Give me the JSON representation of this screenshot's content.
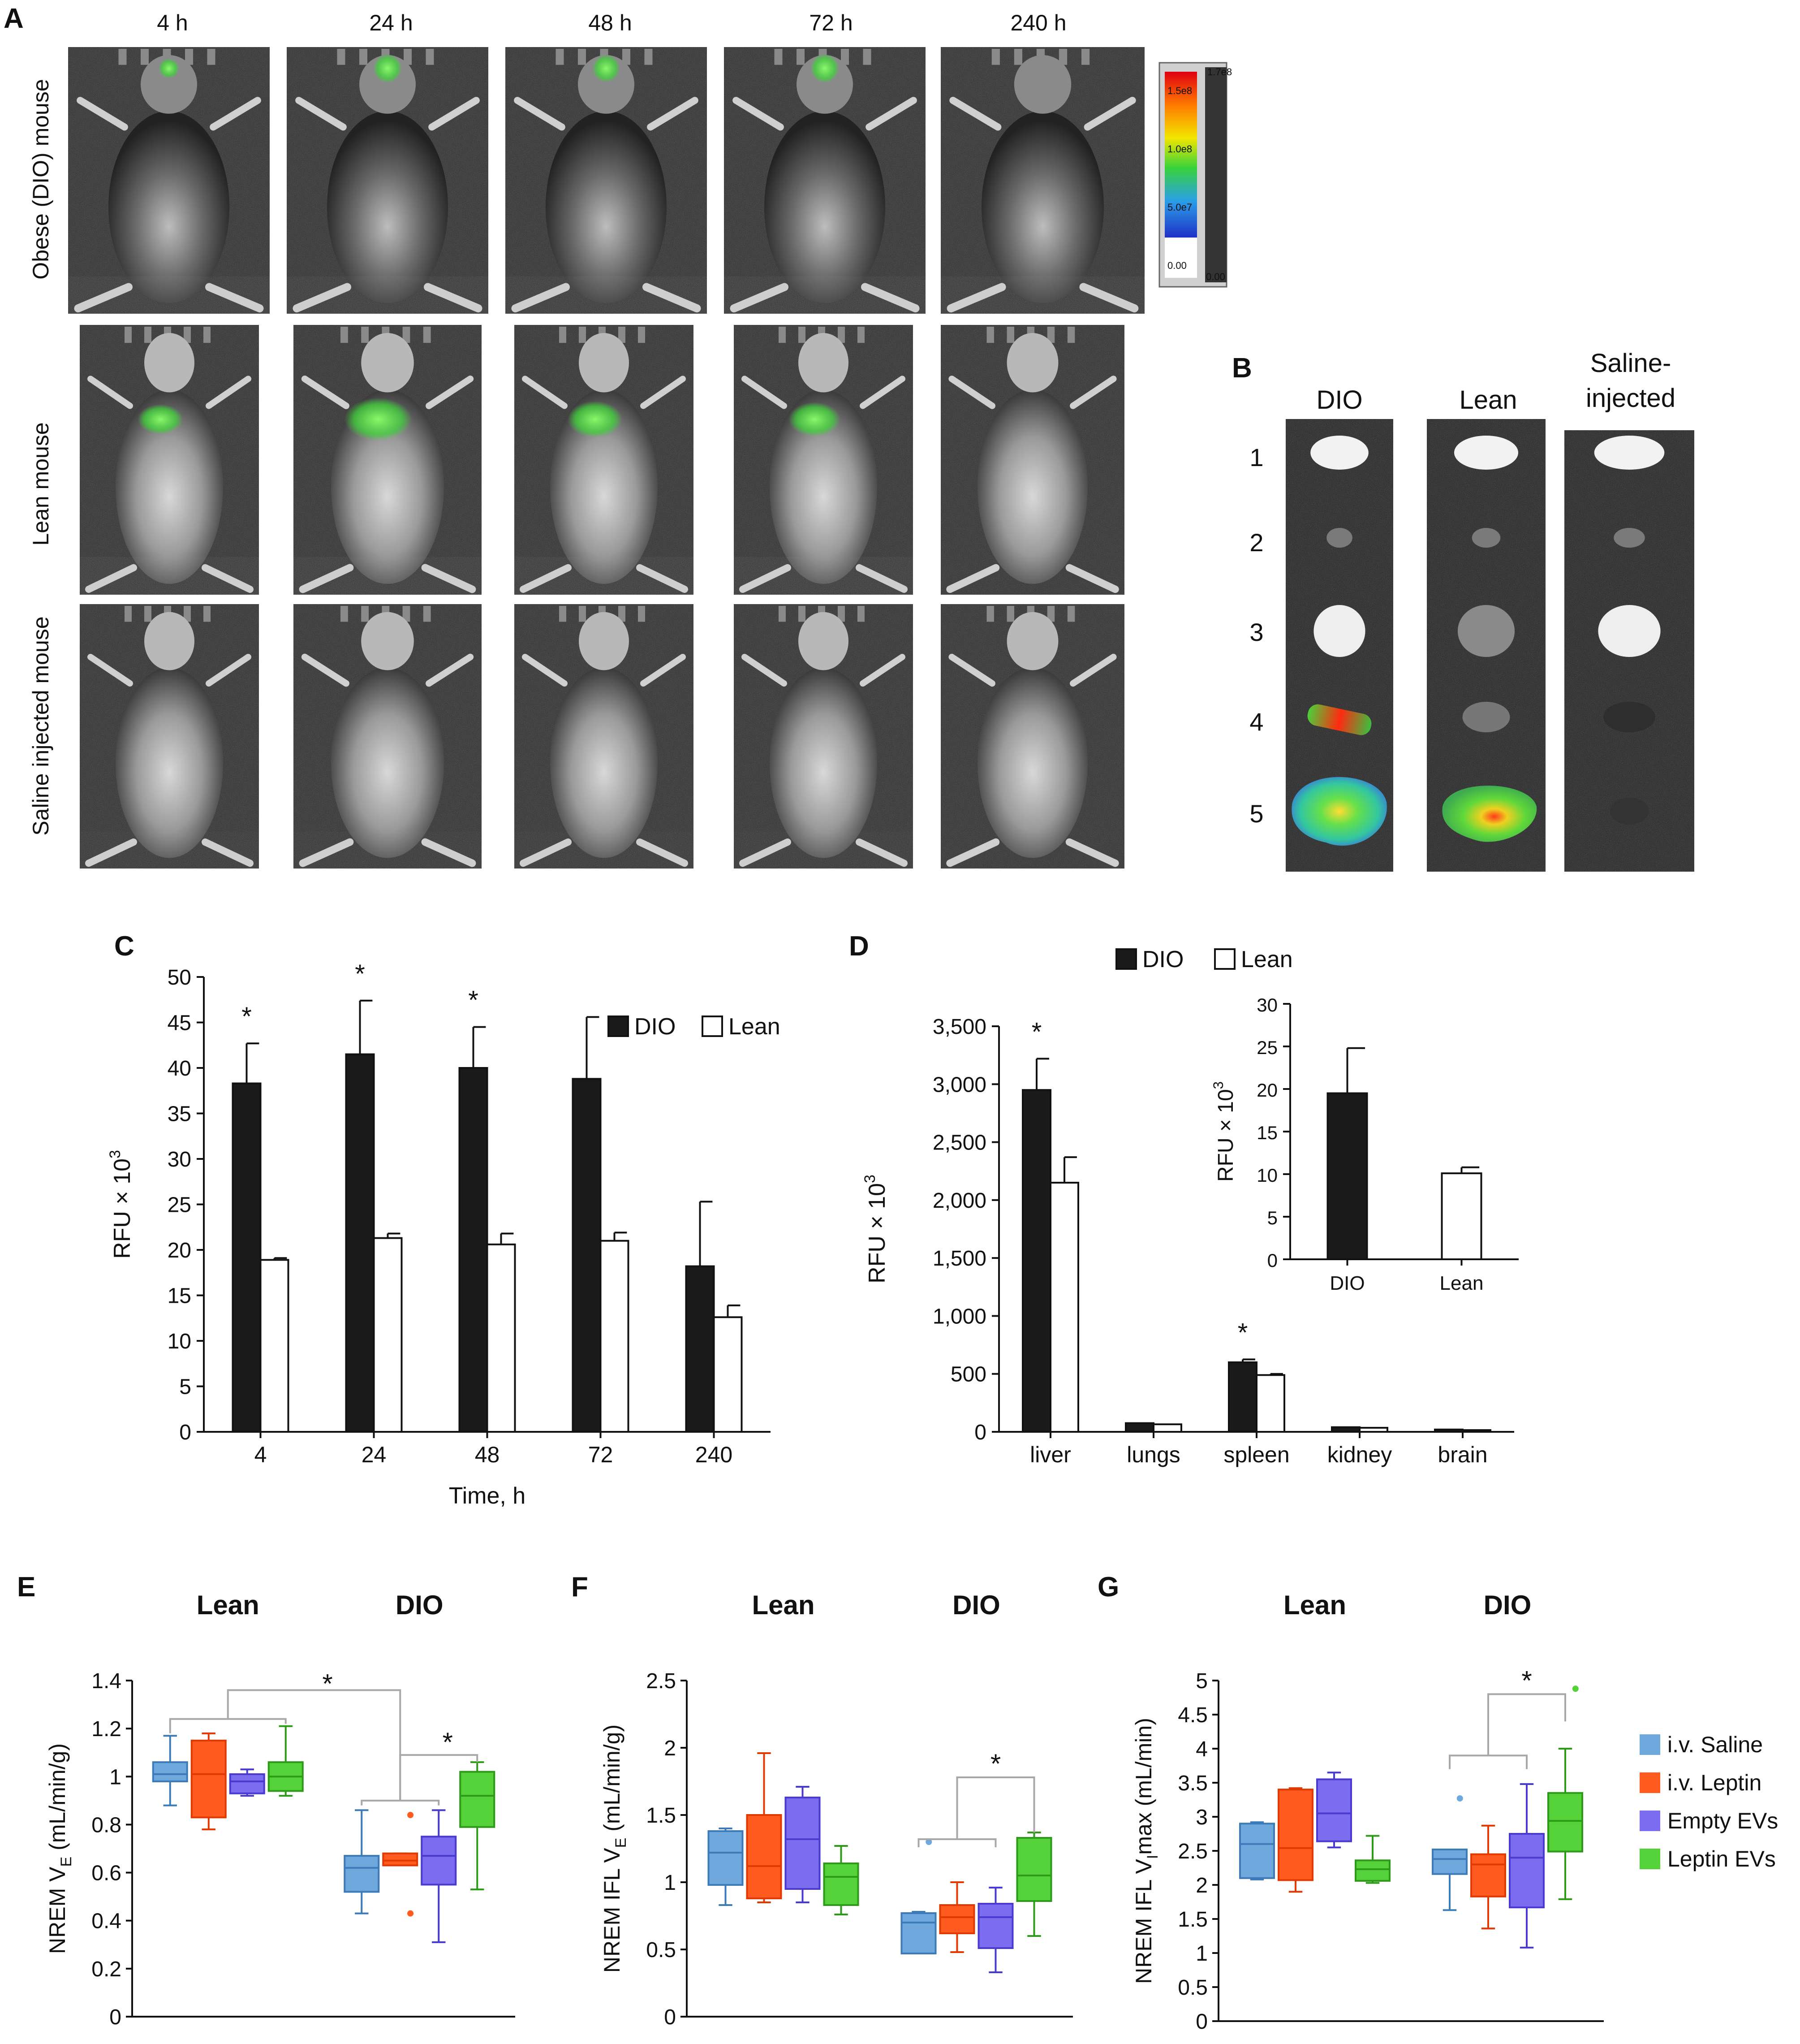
{
  "panel_letters": {
    "a": "A",
    "b": "B",
    "c": "C",
    "d": "D",
    "e": "E",
    "f": "F",
    "g": "G"
  },
  "panel_a": {
    "time_labels": [
      "4 h",
      "24 h",
      "48 h",
      "72 h",
      "240 h"
    ],
    "row_labels": [
      "Obese (DIO) mouse",
      "Lean  mouse",
      "Saline injected mouse"
    ],
    "colorbar_labels": [
      "1.7e8",
      "1.5e8",
      "1.0e8",
      "5.0e7",
      "0.00",
      "0.00"
    ],
    "colors": {
      "signal": "#3fd43a",
      "background": "#2a2a2a"
    }
  },
  "panel_b": {
    "columns": [
      "DIO",
      "Lean",
      "Saline-",
      "injected"
    ],
    "rows": [
      "1",
      "2",
      "3",
      "4",
      "5"
    ]
  },
  "chart_data": [
    {
      "id": "C",
      "type": "bar",
      "categories": [
        "4",
        "24",
        "48",
        "72",
        "240"
      ],
      "series": [
        {
          "name": "DIO",
          "color": "#1a1a1a",
          "values": [
            38.3,
            41.5,
            40.0,
            38.8,
            18.2
          ],
          "errors": [
            4.4,
            5.9,
            4.5,
            6.8,
            7.1
          ]
        },
        {
          "name": "Lean",
          "color": "#ffffff",
          "values": [
            18.9,
            21.3,
            20.6,
            21.0,
            12.6
          ],
          "errors": [
            0.2,
            0.5,
            1.2,
            0.9,
            1.3
          ]
        }
      ],
      "significance": [
        "*",
        "*",
        "*",
        "",
        ""
      ],
      "xlabel": "Time, h",
      "ylabel": "RFU × 10",
      "ylabel_sup": "3",
      "ylim": [
        0,
        50
      ],
      "yticks": [
        "0",
        "5",
        "10",
        "15",
        "20",
        "25",
        "30",
        "35",
        "40",
        "45",
        "50"
      ],
      "legend_position": "top-right"
    },
    {
      "id": "D",
      "type": "bar",
      "categories": [
        "liver",
        "lungs",
        "spleen",
        "kidney",
        "brain"
      ],
      "series": [
        {
          "name": "DIO",
          "color": "#1a1a1a",
          "values": [
            2950,
            75,
            600,
            40,
            20
          ],
          "errors": [
            270,
            0,
            25,
            0,
            0
          ]
        },
        {
          "name": "Lean",
          "color": "#ffffff",
          "values": [
            2150,
            65,
            490,
            35,
            15
          ],
          "errors": [
            220,
            0,
            10,
            0,
            0
          ]
        }
      ],
      "significance": [
        "*",
        "",
        "*",
        "",
        ""
      ],
      "ylabel": "RFU × 10",
      "ylabel_sup": "3",
      "ylim": [
        0,
        3500
      ],
      "yticks": [
        "0",
        "500",
        "1,000",
        "1,500",
        "2,000",
        "2,500",
        "3,000",
        "3,500"
      ],
      "legend_position": "top"
    },
    {
      "id": "D-inset",
      "type": "bar",
      "categories": [
        "DIO",
        "Lean"
      ],
      "values": [
        19.5,
        10.1
      ],
      "errors": [
        5.3,
        0.7
      ],
      "colors": [
        "#1a1a1a",
        "#ffffff"
      ],
      "ylabel": "RFU × 10",
      "ylabel_sup": "3",
      "ylim": [
        0,
        30
      ],
      "yticks": [
        "0",
        "5",
        "10",
        "15",
        "20",
        "25",
        "30"
      ]
    },
    {
      "id": "E",
      "type": "box",
      "groups": [
        "Lean",
        "DIO"
      ],
      "series_order": [
        "i.v. Saline",
        "i.v. Leptin",
        "Empty EVs",
        "Leptin EVs"
      ],
      "boxes": [
        [
          [
            0.88,
            0.98,
            1.01,
            1.06,
            1.17,
            []
          ],
          [
            0.78,
            0.83,
            1.01,
            1.15,
            1.18,
            []
          ],
          [
            0.92,
            0.93,
            0.98,
            1.01,
            1.03,
            []
          ],
          [
            0.92,
            0.94,
            1.0,
            1.06,
            1.21,
            []
          ]
        ],
        [
          [
            0.43,
            0.52,
            0.62,
            0.67,
            0.86,
            []
          ],
          [
            0.63,
            0.63,
            0.65,
            0.68,
            0.68,
            [
              0.84,
              0.43
            ]
          ],
          [
            0.31,
            0.55,
            0.67,
            0.75,
            0.86,
            []
          ],
          [
            0.53,
            0.79,
            0.92,
            1.02,
            1.06,
            []
          ]
        ]
      ],
      "significance": [
        "*",
        "*"
      ],
      "ylabel": "NREM V",
      "ylabel_sub": "E",
      "ylabel_unit": " (mL/min/g)",
      "ylim": [
        0,
        1.4
      ],
      "yticks": [
        "0",
        "0.2",
        "0.4",
        "0.6",
        "0.8",
        "1",
        "1.2",
        "1.4"
      ]
    },
    {
      "id": "F",
      "type": "box",
      "groups": [
        "Lean",
        "DIO"
      ],
      "series_order": [
        "i.v. Saline",
        "i.v. Leptin",
        "Empty EVs",
        "Leptin EVs"
      ],
      "boxes": [
        [
          [
            0.83,
            0.98,
            1.22,
            1.38,
            1.4,
            []
          ],
          [
            0.85,
            0.88,
            1.12,
            1.5,
            1.96,
            []
          ],
          [
            0.85,
            0.95,
            1.32,
            1.63,
            1.71,
            []
          ],
          [
            0.76,
            0.83,
            1.04,
            1.14,
            1.27,
            []
          ]
        ],
        [
          [
            0.48,
            0.47,
            0.7,
            0.77,
            0.78,
            [
              1.3
            ]
          ],
          [
            0.48,
            0.62,
            0.74,
            0.83,
            1.0,
            []
          ],
          [
            0.33,
            0.51,
            0.74,
            0.84,
            0.96,
            []
          ],
          [
            0.6,
            0.86,
            1.05,
            1.33,
            1.37,
            []
          ]
        ]
      ],
      "significance": [
        "*"
      ],
      "ylabel": "NREM IFL V",
      "ylabel_sub": "E",
      "ylabel_unit": " (mL/min/g)",
      "ylim": [
        0,
        2.5
      ],
      "yticks": [
        "0",
        "0.5",
        "1",
        "1.5",
        "2",
        "2.5"
      ]
    },
    {
      "id": "G",
      "type": "box",
      "groups": [
        "Lean",
        "DIO"
      ],
      "series_order": [
        "i.v. Saline",
        "i.v. Leptin",
        "Empty EVs",
        "Leptin EVs"
      ],
      "boxes": [
        [
          [
            2.08,
            2.1,
            2.6,
            2.9,
            2.92,
            []
          ],
          [
            1.9,
            2.07,
            2.54,
            3.4,
            3.42,
            []
          ],
          [
            2.55,
            2.64,
            3.05,
            3.55,
            3.65,
            []
          ],
          [
            2.03,
            2.06,
            2.23,
            2.36,
            2.72,
            []
          ]
        ],
        [
          [
            1.63,
            2.16,
            2.38,
            2.52,
            2.5,
            [
              3.27
            ]
          ],
          [
            1.36,
            1.83,
            2.3,
            2.45,
            2.87,
            []
          ],
          [
            1.08,
            1.67,
            2.4,
            2.75,
            3.48,
            []
          ],
          [
            1.79,
            2.49,
            2.94,
            3.35,
            4.0,
            [
              4.88
            ]
          ]
        ]
      ],
      "significance": [
        "*"
      ],
      "ylabel": "NREM IFL V",
      "ylabel_sub": "I",
      "ylabel_unit": "max (mL/min)",
      "ylim": [
        0,
        5
      ],
      "yticks": [
        "0",
        "0.5",
        "1",
        "1.5",
        "2",
        "2.5",
        "3",
        "3.5",
        "4",
        "4.5",
        "5"
      ]
    }
  ],
  "box_colors": {
    "i.v. Saline": "#6fa8dc",
    "i.v. Leptin": "#ff5a1f",
    "Empty EVs": "#7b6cf0",
    "Leptin EVs": "#55d13a"
  },
  "box_edge_colors": {
    "i.v. Saline": "#3d7bb8",
    "i.v. Leptin": "#e03a00",
    "Empty EVs": "#4a3bd0",
    "Leptin EVs": "#2d9a18"
  },
  "legend": [
    "i.v. Saline",
    "i.v. Leptin",
    "Empty EVs",
    "Leptin EVs"
  ]
}
